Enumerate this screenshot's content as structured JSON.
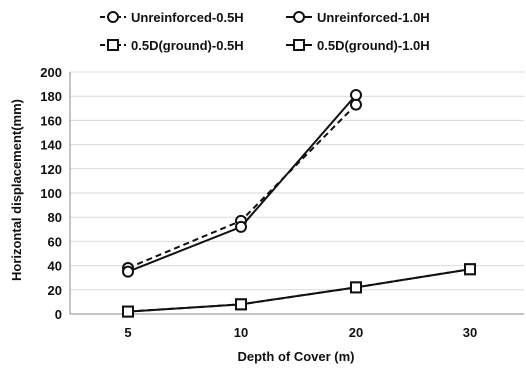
{
  "chart_data": {
    "type": "line",
    "x": [
      "5",
      "10",
      "20",
      "30"
    ],
    "xlabel": "Depth of Cover (m)",
    "ylabel": "Horizontal displacement(mm)",
    "ylim": [
      0,
      200
    ],
    "yticks": [
      0,
      20,
      40,
      60,
      80,
      100,
      120,
      140,
      160,
      180,
      200
    ],
    "grid": "horizontal",
    "legend_position": "top",
    "series": [
      {
        "name": "Unreinforced-0.5H",
        "marker": "circle",
        "line": "dashed",
        "values": [
          38,
          77,
          173,
          null
        ]
      },
      {
        "name": "Unreinforced-1.0H",
        "marker": "circle",
        "line": "solid",
        "values": [
          35,
          72,
          181,
          null
        ]
      },
      {
        "name": "0.5D(ground)-0.5H",
        "marker": "square",
        "line": "dashed",
        "values": [
          2,
          8,
          22,
          37
        ]
      },
      {
        "name": "0.5D(ground)-1.0H",
        "marker": "square",
        "line": "solid",
        "values": [
          2,
          8,
          22,
          37
        ]
      }
    ],
    "colors": {
      "line": "#111111",
      "grid": "#d9d9d9",
      "axis": "#888888"
    }
  }
}
